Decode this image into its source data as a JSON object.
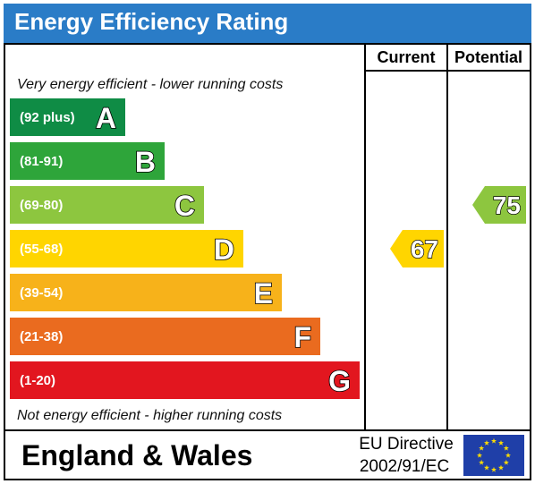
{
  "title": "Energy Efficiency Rating",
  "columns": {
    "current": "Current",
    "potential": "Potential"
  },
  "notes": {
    "top": "Very energy efficient - lower running costs",
    "bottom": "Not energy efficient - higher running costs"
  },
  "footer": {
    "region": "England & Wales",
    "directive_line1": "EU Directive",
    "directive_line2": "2002/91/EC"
  },
  "colors": {
    "title_bar": "#2a7cc7",
    "A": "#0f8c45",
    "B": "#2ea53a",
    "C": "#8dc63f",
    "D": "#ffd500",
    "E": "#f7b21a",
    "F": "#ea6b1f",
    "G": "#e2161f",
    "eu_flag": "#1f3fa8",
    "eu_star": "#ffdd00"
  },
  "chart_data": {
    "type": "bar",
    "title": "Energy Efficiency Rating",
    "bands": [
      {
        "letter": "A",
        "range": "(92 plus)",
        "min": 92,
        "max": null
      },
      {
        "letter": "B",
        "range": "(81-91)",
        "min": 81,
        "max": 91
      },
      {
        "letter": "C",
        "range": "(69-80)",
        "min": 69,
        "max": 80
      },
      {
        "letter": "D",
        "range": "(55-68)",
        "min": 55,
        "max": 68
      },
      {
        "letter": "E",
        "range": "(39-54)",
        "min": 39,
        "max": 54
      },
      {
        "letter": "F",
        "range": "(21-38)",
        "min": 21,
        "max": 38
      },
      {
        "letter": "G",
        "range": "(1-20)",
        "min": 1,
        "max": 20
      }
    ],
    "current": {
      "value": 67,
      "band": "D"
    },
    "potential": {
      "value": 75,
      "band": "C"
    }
  }
}
